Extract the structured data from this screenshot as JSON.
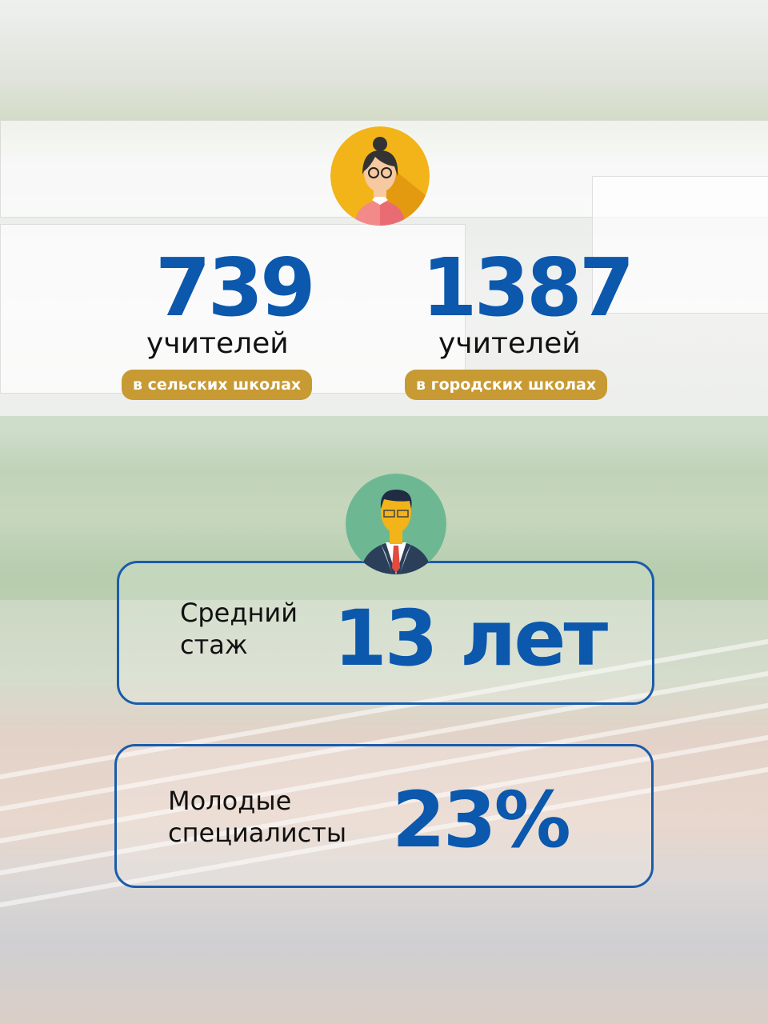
{
  "top_stats": [
    {
      "value": "739",
      "unit": "учителей",
      "tag": "в сельских школах"
    },
    {
      "value": "1387",
      "unit": "учителей",
      "tag": "в городских школах"
    }
  ],
  "experience": {
    "label_line1": "Средний",
    "label_line2": "стаж",
    "value": "13 лет"
  },
  "young": {
    "label_line1": "Молодые",
    "label_line2": "специалисты",
    "value": "23%"
  },
  "icons": [
    "female-teacher-avatar-icon",
    "male-teacher-avatar-icon"
  ],
  "colors": {
    "accent_blue": "#0b58ad",
    "tag_gold": "#c79a33",
    "border_blue": "#1a5cab"
  }
}
